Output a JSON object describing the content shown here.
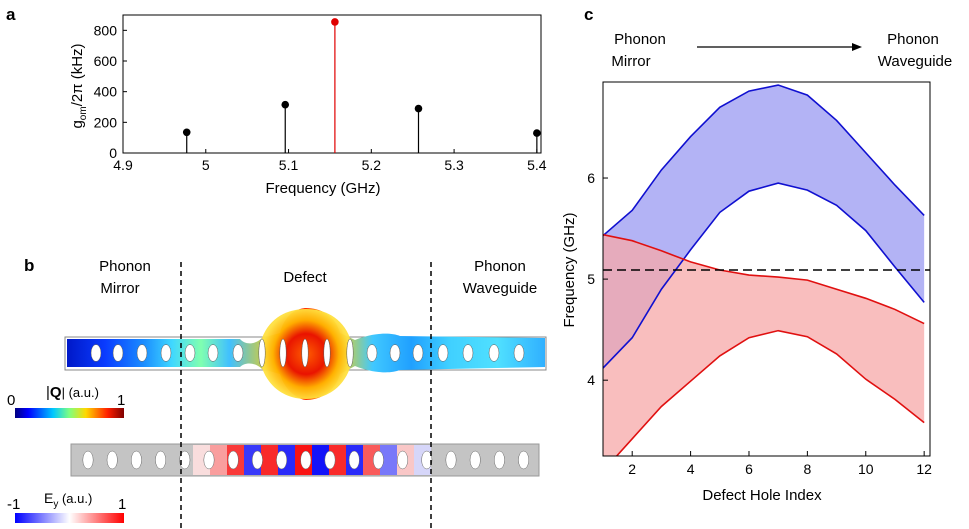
{
  "panels": {
    "a": {
      "label": "a",
      "chart_data": {
        "type": "stem",
        "xlabel": "Frequency (GHz)",
        "ylabel_main": "g",
        "ylabel_sub": "om",
        "ylabel_rest": "/2π (kHz)",
        "xlim": [
          4.9,
          5.405
        ],
        "ylim": [
          0,
          900
        ],
        "xticks": [
          4.9,
          5,
          5.1,
          5.2,
          5.3,
          5.4
        ],
        "yticks": [
          0,
          200,
          400,
          600,
          800
        ],
        "points": [
          {
            "x": 4.977,
            "y": 135,
            "color": "#000000"
          },
          {
            "x": 5.096,
            "y": 315,
            "color": "#000000"
          },
          {
            "x": 5.156,
            "y": 855,
            "color": "#e00000"
          },
          {
            "x": 5.257,
            "y": 290,
            "color": "#000000"
          },
          {
            "x": 5.4,
            "y": 130,
            "color": "#000000"
          }
        ],
        "grid": false
      }
    },
    "b": {
      "label": "b",
      "regions": [
        "Phonon",
        "Mirror",
        "Defect",
        "Phonon",
        "Waveguide"
      ],
      "colorbar_q": {
        "min": "0",
        "max": "1",
        "label_pre": "|",
        "label_bold": "Q",
        "label_post": "| (a.u.)"
      },
      "colorbar_e": {
        "min": "-1",
        "max": "1",
        "label_main": "E",
        "label_sub": "y",
        "label_post": " (a.u.)"
      }
    },
    "c": {
      "label": "c",
      "arrow_left": [
        "Phonon",
        "Mirror"
      ],
      "arrow_right": [
        "Phonon",
        "Waveguide"
      ],
      "chart_data": {
        "type": "area",
        "xlabel": "Defect Hole Index",
        "ylabel": "Frequency (GHz)",
        "xlim": [
          1,
          12.2
        ],
        "ylim": [
          3.25,
          6.95
        ],
        "xticks": [
          2,
          4,
          6,
          8,
          10,
          12
        ],
        "yticks": [
          4,
          5,
          6
        ],
        "x": [
          1,
          2,
          3,
          4,
          5,
          6,
          7,
          8,
          9,
          10,
          11,
          12
        ],
        "dashed_line_y": 5.09,
        "series": [
          {
            "band": "blue",
            "upper": [
              5.43,
              5.68,
              6.08,
              6.41,
              6.7,
              6.86,
              6.92,
              6.82,
              6.57,
              6.25,
              5.93,
              5.63
            ],
            "lower": [
              4.12,
              4.42,
              4.9,
              5.29,
              5.66,
              5.87,
              5.95,
              5.88,
              5.73,
              5.48,
              5.12,
              4.77
            ],
            "line": "#1010d0",
            "fill": "#9999f2"
          },
          {
            "band": "red",
            "upper": [
              5.44,
              5.38,
              5.28,
              5.17,
              5.09,
              5.04,
              5.02,
              4.99,
              4.9,
              4.81,
              4.7,
              4.56
            ],
            "lower": [
              3.1,
              3.42,
              3.74,
              3.99,
              4.24,
              4.42,
              4.49,
              4.43,
              4.26,
              4.01,
              3.81,
              3.58
            ],
            "line": "#e01010",
            "fill": "#f7a8a8"
          }
        ]
      }
    }
  }
}
